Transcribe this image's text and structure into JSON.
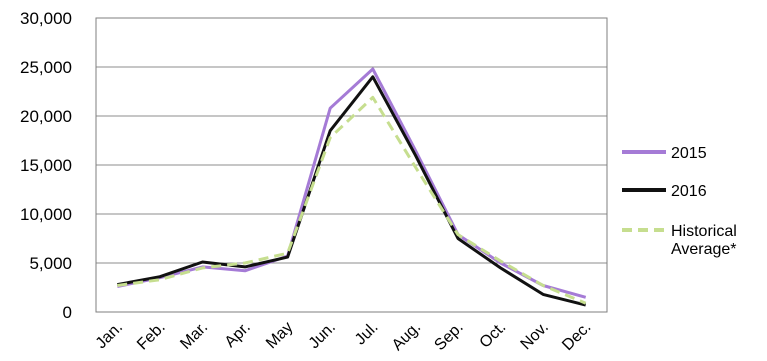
{
  "chart_data": {
    "type": "line",
    "categories": [
      "Jan.",
      "Feb.",
      "Mar.",
      "Apr.",
      "May",
      "Jun.",
      "Jul.",
      "Aug.",
      "Sep.",
      "Oct.",
      "Nov.",
      "Dec."
    ],
    "series": [
      {
        "name": "2015",
        "color": "#A57BD6",
        "style": "solid",
        "values": [
          2600,
          3500,
          4600,
          4200,
          5700,
          20800,
          24800,
          16500,
          7900,
          5000,
          2700,
          1500
        ]
      },
      {
        "name": "2016",
        "color": "#111111",
        "style": "solid",
        "values": [
          2800,
          3600,
          5100,
          4600,
          5600,
          18500,
          24000,
          16000,
          7500,
          4500,
          1800,
          700
        ]
      },
      {
        "name": "Historical Average*",
        "name_lines": [
          "Historical",
          "Average*"
        ],
        "color": "#C6DE8F",
        "style": "dashed",
        "values": [
          2700,
          3300,
          4500,
          5000,
          6000,
          17800,
          21900,
          14800,
          7900,
          5200,
          2700,
          900
        ]
      }
    ],
    "yticks": [
      "0",
      "5,000",
      "10,000",
      "15,000",
      "20,000",
      "25,000",
      "30,000"
    ],
    "ylim": [
      0,
      30000
    ],
    "title": "",
    "xlabel": "",
    "ylabel": "",
    "grid": true,
    "legend_position": "right"
  }
}
